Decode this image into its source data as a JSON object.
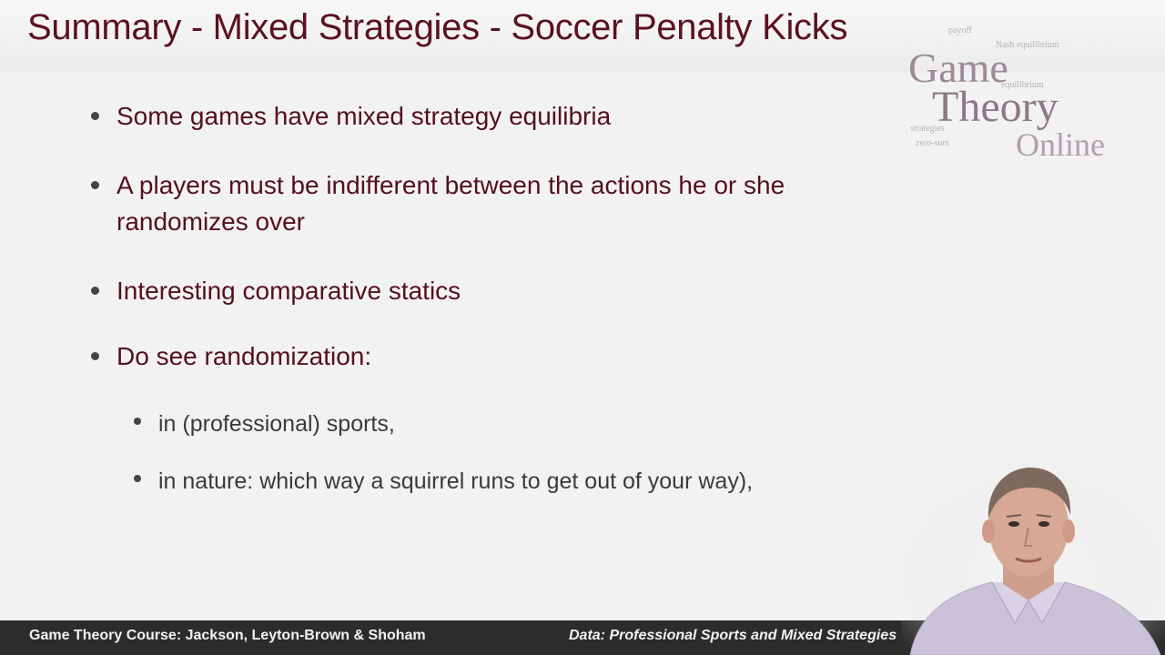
{
  "slide": {
    "title": "Summary - Mixed Strategies - Soccer Penalty Kicks",
    "bullets": [
      {
        "text": "Some games have mixed strategy equilibria"
      },
      {
        "text": "A players must be indifferent between the actions he or she randomizes over"
      },
      {
        "text": "Interesting comparative statics"
      },
      {
        "text": "Do see randomization:"
      }
    ],
    "sub_bullets": [
      {
        "text": "in (professional) sports,"
      },
      {
        "text": "in nature: which way a squirrel runs to get out of your way),"
      }
    ]
  },
  "logo": {
    "word1": "Game",
    "word2": "Theory",
    "word3": "Online",
    "cloud": [
      "payoff",
      "Nash equilibrium",
      "equilibrium",
      "strategies",
      "zero-sum"
    ]
  },
  "footer": {
    "left": "Game Theory Course: Jackson, Leyton-Brown & Shoham",
    "right": "Data: Professional Sports and Mixed Strategies"
  },
  "colors": {
    "title": "#5b1220",
    "bullet_text": "#54101f",
    "footer_bg": "#2c2c2c"
  }
}
